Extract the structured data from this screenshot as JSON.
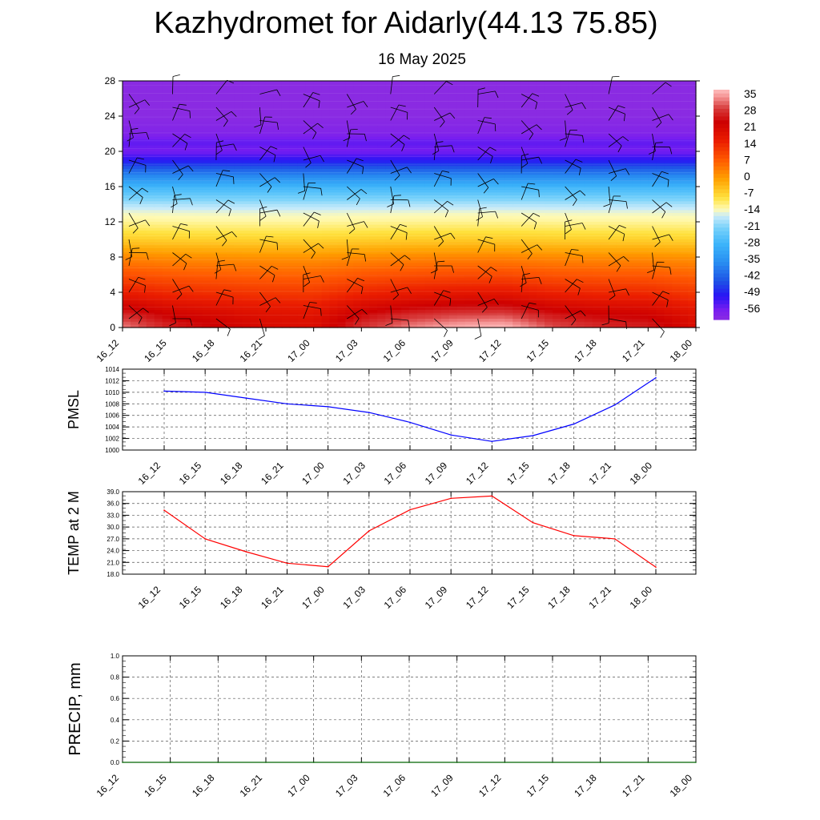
{
  "header": {
    "title": "Kazhydromet for Aidarly(44.13 75.85)",
    "subtitle": "16 May 2025"
  },
  "time_labels": [
    "16_12",
    "16_15",
    "16_18",
    "16_21",
    "17_00",
    "17_03",
    "17_06",
    "17_09",
    "17_12",
    "17_15",
    "17_18",
    "17_21",
    "18_00"
  ],
  "chart_data": [
    {
      "type": "heatmap",
      "name": "temperature cross-section with wind barbs",
      "x": [
        "16_12",
        "16_15",
        "16_18",
        "16_21",
        "17_00",
        "17_03",
        "17_06",
        "17_09",
        "17_12",
        "17_15",
        "17_18",
        "17_21",
        "18_00"
      ],
      "y_ticks": [
        0,
        4,
        8,
        12,
        16,
        20,
        24,
        28
      ],
      "ylim": [
        0,
        28
      ],
      "colorbar": {
        "labels": [
          "35",
          "28",
          "21",
          "14",
          "7",
          "0",
          "-7",
          "-14",
          "-21",
          "-28",
          "-35",
          "-42",
          "-49",
          "-56"
        ],
        "range": [
          -60,
          38
        ]
      },
      "profile": {
        "heights": [
          0,
          1,
          2,
          4,
          6,
          8,
          10,
          12,
          13,
          14,
          16,
          18,
          19,
          20,
          21,
          22,
          24,
          28
        ],
        "temps": [
          26,
          24,
          21,
          14,
          8,
          2,
          -6,
          -12,
          -14,
          -18,
          -28,
          -42,
          -50,
          -56,
          -54,
          -58,
          -60,
          -60
        ]
      },
      "surface_temps": [
        34,
        27,
        24,
        21,
        20,
        29,
        34,
        37,
        38,
        31,
        28,
        27,
        20
      ],
      "wind_barbs": true
    },
    {
      "type": "line",
      "ylabel": "PMSL",
      "x": [
        "16_12",
        "16_15",
        "16_18",
        "16_21",
        "17_00",
        "17_03",
        "17_06",
        "17_09",
        "17_12",
        "17_15",
        "17_18",
        "17_21",
        "18_00"
      ],
      "values": [
        1010.2,
        1010.0,
        1009.0,
        1008.0,
        1007.5,
        1006.5,
        1004.8,
        1002.6,
        1001.5,
        1002.5,
        1004.5,
        1007.8,
        1012.5
      ],
      "ylim": [
        1000,
        1014
      ],
      "y_ticks": [
        1000,
        1002,
        1004,
        1006,
        1008,
        1010,
        1012,
        1014
      ],
      "color": "#0000ff",
      "grid": true
    },
    {
      "type": "line",
      "ylabel": "TEMP at 2 M",
      "x": [
        "16_12",
        "16_15",
        "16_18",
        "16_21",
        "17_00",
        "17_03",
        "17_06",
        "17_09",
        "17_12",
        "17_15",
        "17_18",
        "17_21",
        "18_00"
      ],
      "values": [
        34.3,
        27.0,
        23.7,
        20.8,
        19.9,
        29.0,
        34.4,
        37.3,
        37.9,
        31.1,
        27.8,
        27.0,
        19.8
      ],
      "ylim": [
        18,
        39
      ],
      "y_ticks": [
        "18.0",
        "21.0",
        "24.0",
        "27.0",
        "30.0",
        "33.0",
        "36.0",
        "39.0"
      ],
      "color": "#ff0000",
      "grid": true
    },
    {
      "type": "line",
      "ylabel": "PRECIP, mm",
      "x": [
        "16_12",
        "16_15",
        "16_18",
        "16_21",
        "17_00",
        "17_03",
        "17_06",
        "17_09",
        "17_12",
        "17_15",
        "17_18",
        "17_21",
        "18_00"
      ],
      "values": [
        0,
        0,
        0,
        0,
        0,
        0,
        0,
        0,
        0,
        0,
        0,
        0,
        0
      ],
      "ylim": [
        0,
        1
      ],
      "y_ticks": [
        "0.0",
        "0.2",
        "0.4",
        "0.6",
        "0.8",
        "1.0"
      ],
      "color": "#006400",
      "grid": true
    }
  ]
}
